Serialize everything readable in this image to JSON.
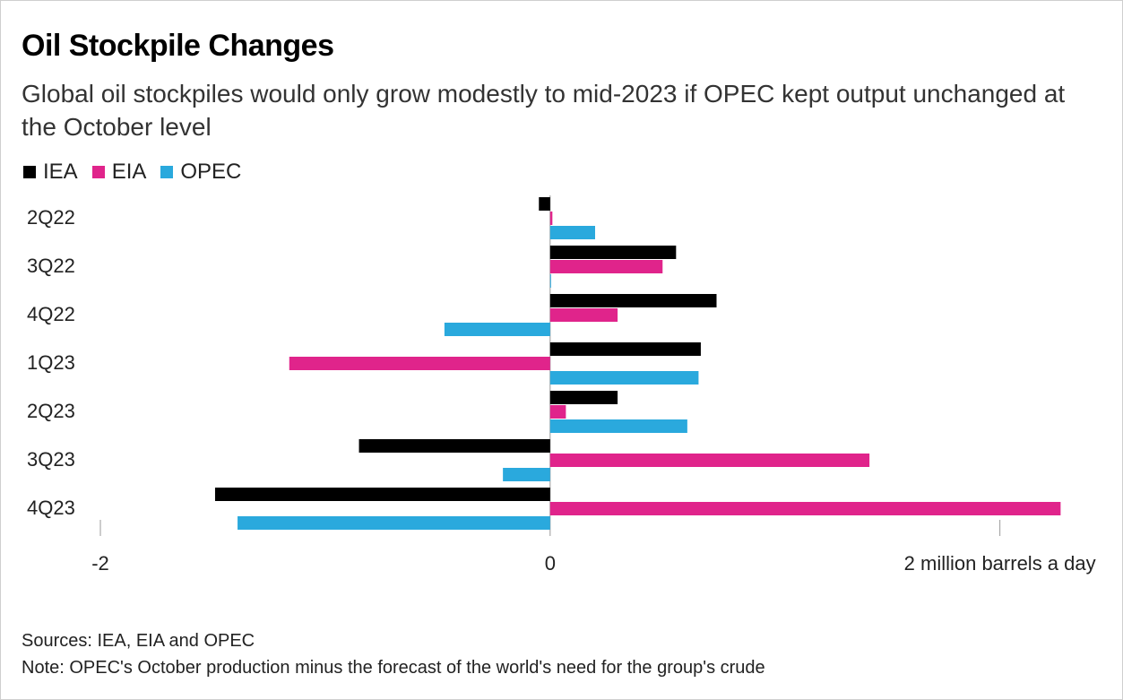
{
  "header": {
    "title": "Oil Stockpile Changes",
    "subtitle": "Global oil stockpiles would only grow modestly to mid-2023 if OPEC kept output unchanged at the October level"
  },
  "footer": {
    "sources": "Sources: IEA, EIA and OPEC",
    "note": "Note: OPEC's October production minus the forecast of the world's need for the group's crude"
  },
  "chart_data": {
    "type": "bar",
    "orientation": "horizontal",
    "categories": [
      "2Q22",
      "3Q22",
      "4Q22",
      "1Q23",
      "2Q23",
      "3Q23",
      "4Q23"
    ],
    "series": [
      {
        "name": "IEA",
        "color": "#000000",
        "values": [
          -0.05,
          0.56,
          0.74,
          0.67,
          0.3,
          -0.85,
          -1.49
        ]
      },
      {
        "name": "EIA",
        "color": "#e0248b",
        "values": [
          0.01,
          0.5,
          0.3,
          -1.16,
          0.07,
          1.42,
          2.27
        ]
      },
      {
        "name": "OPEC",
        "color": "#2aa9dd",
        "values": [
          0.2,
          0.0,
          -0.47,
          0.66,
          0.61,
          -0.21,
          -1.39
        ]
      }
    ],
    "xlim": [
      -2,
      2.4
    ],
    "xticks": [
      {
        "value": -2,
        "label": "-2"
      },
      {
        "value": 0,
        "label": "0"
      },
      {
        "value": 2,
        "label": "2 million barrels a day"
      }
    ],
    "legend": "top-left",
    "grid": false
  }
}
